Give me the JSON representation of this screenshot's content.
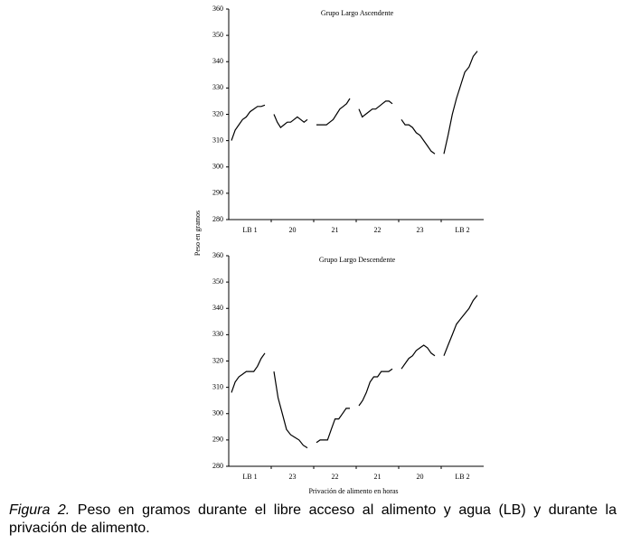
{
  "chart_data": [
    {
      "type": "line",
      "title": "Grupo Largo Ascendente",
      "ylabel": "Peso en gramos",
      "categories": [
        "LB 1",
        "20",
        "21",
        "22",
        "23",
        "LB 2"
      ],
      "values": [
        [
          310,
          314,
          316,
          318,
          319,
          321,
          322,
          323,
          323,
          323.5
        ],
        [
          320,
          317,
          315,
          316,
          317,
          317,
          318,
          319,
          318,
          317,
          318
        ],
        [
          316,
          316,
          316,
          316,
          317,
          318,
          320,
          322,
          323,
          324,
          326
        ],
        [
          322,
          319,
          320,
          321,
          322,
          322,
          323,
          324,
          325,
          325,
          324
        ],
        [
          318,
          316,
          316,
          315,
          313,
          312,
          310,
          308,
          306,
          305
        ],
        [
          305,
          312,
          320,
          326,
          331,
          336,
          338,
          342,
          344
        ]
      ],
      "color": "#000000",
      "ylim": [
        280,
        360
      ],
      "yticks": [
        280,
        290,
        300,
        310,
        320,
        330,
        340,
        350,
        360
      ]
    },
    {
      "type": "line",
      "title": "Grupo Largo Descendente",
      "xlabel": "Privación de alimento en horas",
      "categories": [
        "LB 1",
        "23",
        "22",
        "21",
        "20",
        "LB 2"
      ],
      "values": [
        [
          308,
          312,
          314,
          315,
          316,
          316,
          316,
          318,
          321,
          323
        ],
        [
          316,
          306,
          300,
          294,
          292,
          291,
          290,
          288,
          287
        ],
        [
          289,
          290,
          290,
          290,
          294,
          298,
          298,
          300,
          302,
          302
        ],
        [
          303,
          305,
          308,
          312,
          314,
          314,
          316,
          316,
          316,
          317
        ],
        [
          317,
          319,
          321,
          322,
          324,
          325,
          326,
          325,
          323,
          322
        ],
        [
          322,
          326,
          330,
          334,
          336,
          338,
          340,
          343,
          345
        ]
      ],
      "color": "#000000",
      "ylim": [
        280,
        360
      ],
      "yticks": [
        280,
        290,
        300,
        310,
        320,
        330,
        340,
        350,
        360
      ]
    }
  ],
  "caption": {
    "label": "Figura 2.",
    "text": "Peso en gramos durante el libre acceso al alimento y agua (LB) y durante la privación de alimento."
  }
}
